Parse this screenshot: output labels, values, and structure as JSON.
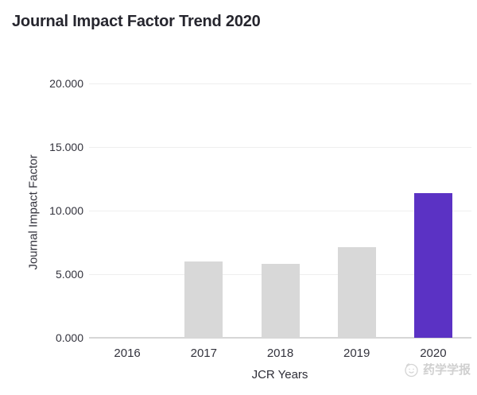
{
  "chart_data": {
    "type": "bar",
    "title": "Journal Impact Factor Trend 2020",
    "categories": [
      "2016",
      "2017",
      "2018",
      "2019",
      "2020"
    ],
    "values": [
      0,
      6.0,
      5.8,
      7.1,
      11.4
    ],
    "xlabel": "JCR Years",
    "ylabel": "Journal Impact Factor",
    "ylim": [
      0,
      20
    ],
    "yticks": [
      {
        "value": 0,
        "label": "0.000"
      },
      {
        "value": 5,
        "label": "5.000"
      },
      {
        "value": 10,
        "label": "10.000"
      },
      {
        "value": 15,
        "label": "15.000"
      },
      {
        "value": 20,
        "label": "20.000"
      }
    ],
    "grid": true,
    "legend": "none",
    "bar_colors": {
      "default": "#d8d8d8",
      "highlight": "#5b32c4",
      "highlight_category": "2020"
    }
  },
  "watermark": {
    "icon": "journal-logo-icon",
    "text": "药学学报"
  }
}
